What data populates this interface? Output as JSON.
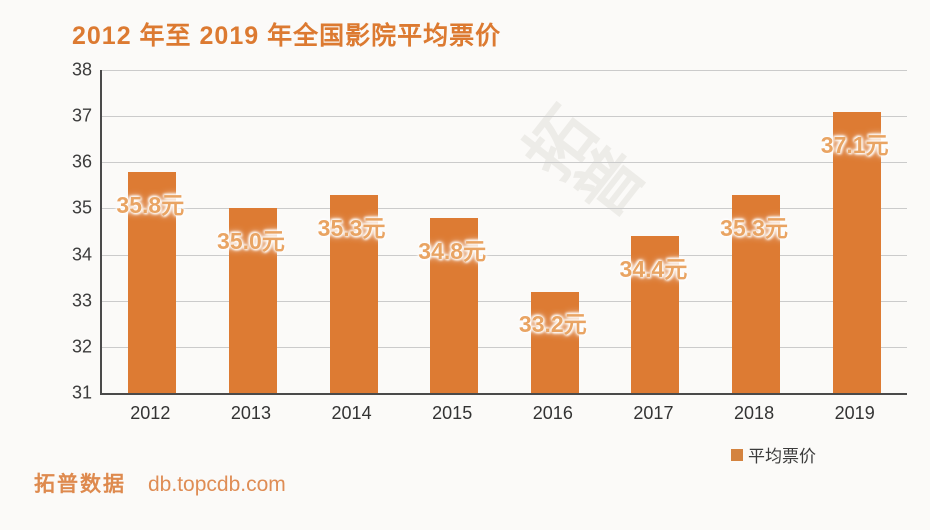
{
  "title": "2012 年至 2019 年全国影院平均票价",
  "chart_data": {
    "type": "bar",
    "title": "2012 年至 2019 年全国影院平均票价",
    "categories": [
      "2012",
      "2013",
      "2014",
      "2015",
      "2016",
      "2017",
      "2018",
      "2019"
    ],
    "series": [
      {
        "name": "平均票价",
        "values": [
          35.8,
          35.0,
          35.3,
          34.8,
          33.2,
          34.4,
          35.3,
          37.1
        ],
        "data_labels": [
          "35.8元",
          "35.0元",
          "35.3元",
          "34.8元",
          "33.2元",
          "34.4元",
          "35.3元",
          "37.1元"
        ]
      }
    ],
    "xlabel": "",
    "ylabel": "",
    "ylim": [
      31,
      38
    ],
    "yticks": [
      38,
      37,
      36,
      35,
      34,
      33,
      32,
      31
    ],
    "grid": true,
    "legend_position": "bottom-right",
    "bar_color": "#dd7b33",
    "data_label_color": "#e9a463"
  },
  "legend": {
    "label": "平均票价"
  },
  "watermark": {
    "text": "拓普"
  },
  "footer": {
    "brand": "拓普数据",
    "url": "db.topcdb.com"
  },
  "colors": {
    "title": "#dc7a31",
    "bar": "#dd7b33",
    "data_label": "#e9a463",
    "axis_text": "#3c3c3c",
    "gridline": "#cbcbcb",
    "axis_line": "#4a4a4a",
    "footer_text": "#de8a4e",
    "background": "#fbfaf8"
  }
}
